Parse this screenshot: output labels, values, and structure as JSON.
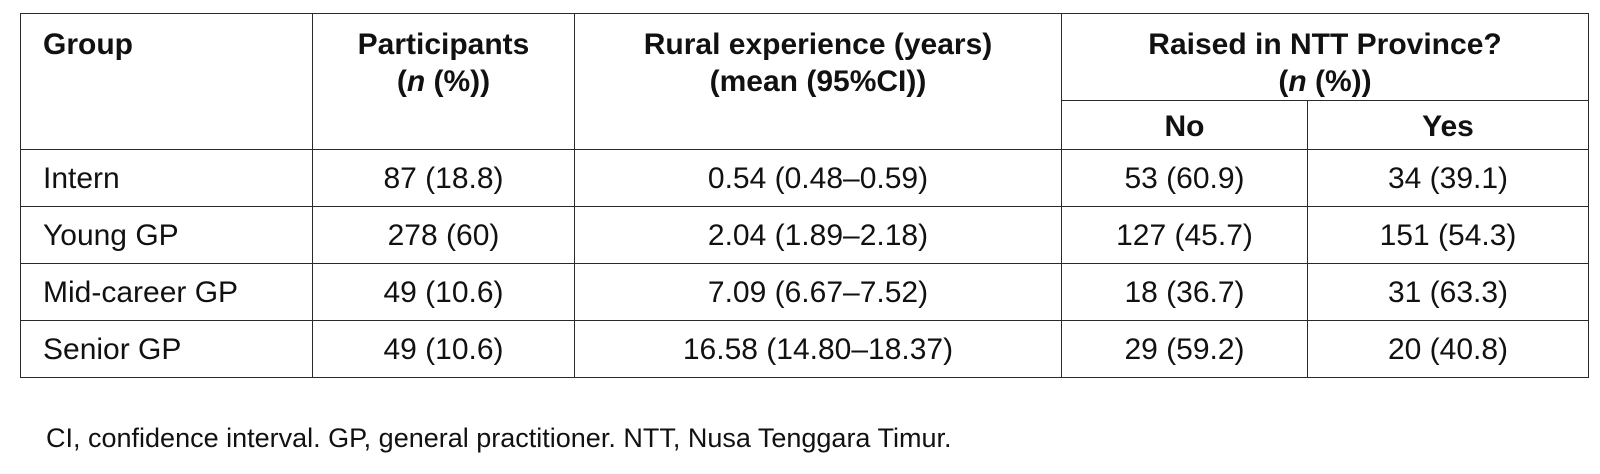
{
  "table": {
    "headers": {
      "group": "Group",
      "participants_line1": "Participants",
      "participants_n": "n",
      "participants_rest": " (%))",
      "participants_open": "(",
      "rural_line1": "Rural experience (years)",
      "rural_line2": "(mean (95%CI))",
      "raised_line1": "Raised in NTT Province?",
      "raised_open": "(",
      "raised_n": "n",
      "raised_rest": " (%))",
      "no": "No",
      "yes": "Yes"
    },
    "rows": [
      {
        "group": "Intern",
        "participants": "87 (18.8)",
        "rural": "0.54 (0.48–0.59)",
        "no": "53 (60.9)",
        "yes": "34 (39.1)"
      },
      {
        "group": "Young GP",
        "participants": "278 (60)",
        "rural": "2.04 (1.89–2.18)",
        "no": "127 (45.7)",
        "yes": "151 (54.3)"
      },
      {
        "group": "Mid-career GP",
        "participants": "49 (10.6)",
        "rural": "7.09 (6.67–7.52)",
        "no": "18 (36.7)",
        "yes": "31 (63.3)"
      },
      {
        "group": "Senior GP",
        "participants": "49 (10.6)",
        "rural": "16.58 (14.80–18.37)",
        "no": "29 (59.2)",
        "yes": "20 (40.8)"
      }
    ]
  },
  "footnote": "CI, confidence interval. GP, general practitioner. NTT, Nusa Tenggara Timur."
}
